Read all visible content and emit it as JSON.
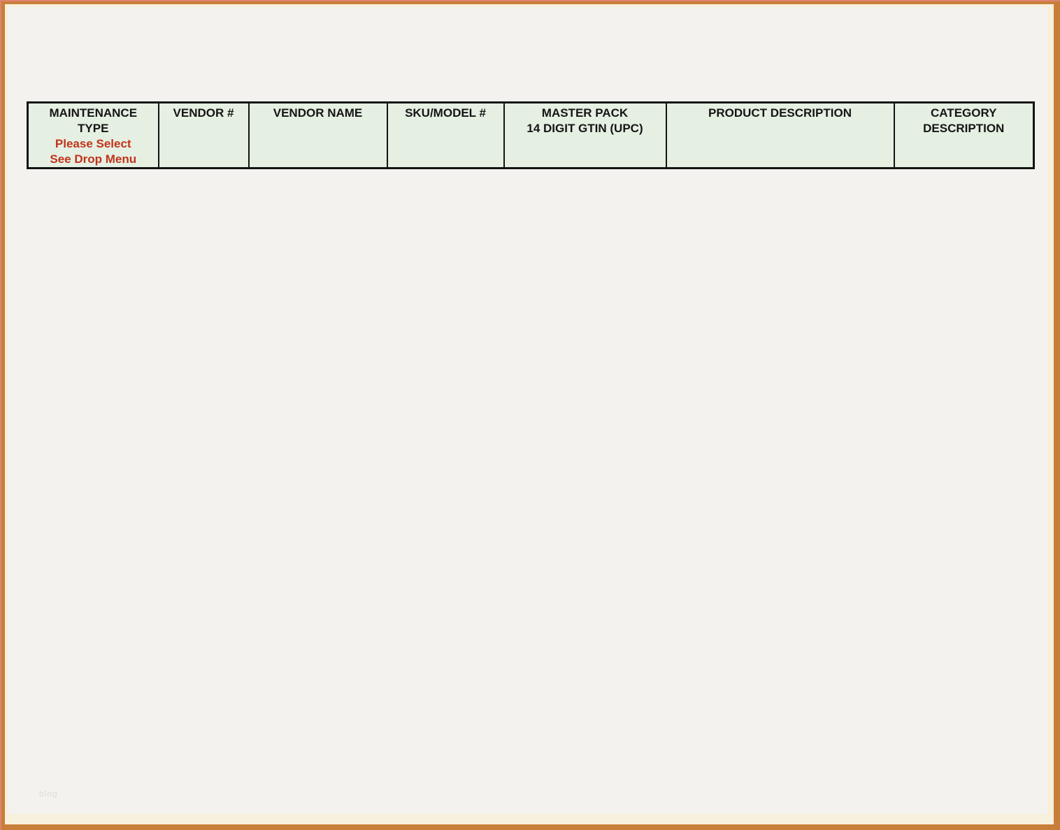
{
  "page": {
    "background_color": "#f3f2ef",
    "frame_color": "#c87e38",
    "frame_highlight_color": "#df8270",
    "frame_glow_color": "#f7f0dc",
    "watermark": "blog"
  },
  "table": {
    "header_fill": "#e5efe2",
    "border_color": "#141414",
    "note_color": "#c2331a",
    "columns": [
      {
        "line1": "MAINTENANCE",
        "line2": "TYPE",
        "note1": "Please Select",
        "note2": "See Drop Menu"
      },
      {
        "line1": "VENDOR #"
      },
      {
        "line1": "VENDOR NAME"
      },
      {
        "line1": "SKU/MODEL #"
      },
      {
        "line1": "MASTER PACK",
        "line2": "14 DIGIT GTIN (UPC)"
      },
      {
        "line1": "PRODUCT DESCRIPTION"
      },
      {
        "line1": "CATEGORY",
        "line2": "DESCRIPTION"
      }
    ]
  }
}
